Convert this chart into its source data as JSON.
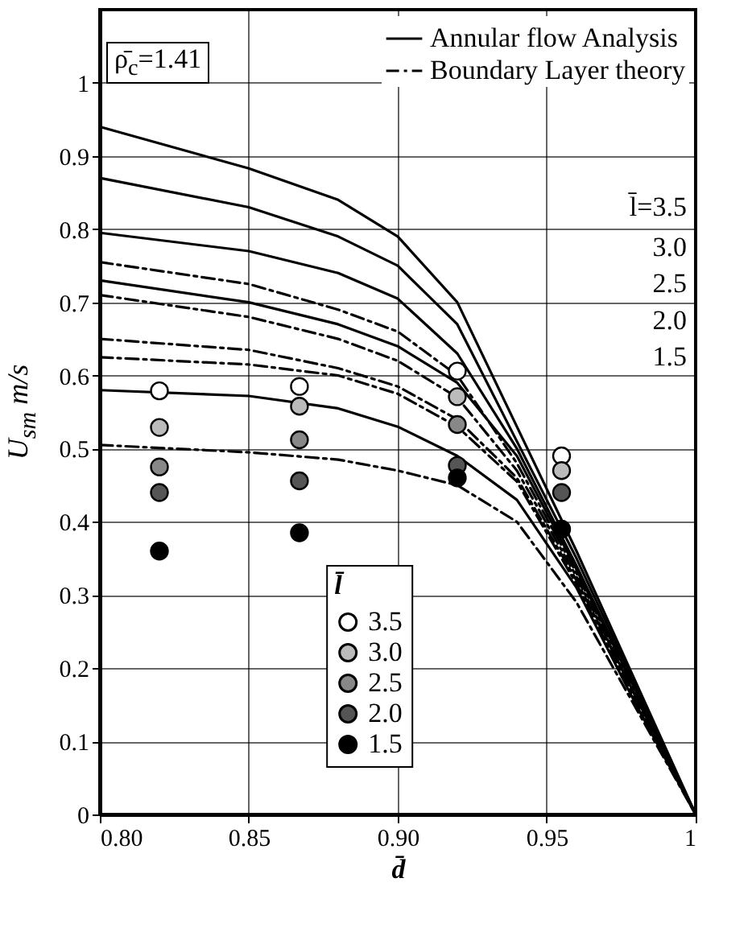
{
  "chart_data": {
    "type": "line",
    "xlabel": "d̄",
    "ylabel": "U$_{sm}$ m/s",
    "legend_title": "l̄",
    "annotations": [
      "ρ̄$_{c}$=1.41",
      "l̄=3.5",
      "3.0",
      "2.5",
      "2.0",
      "1.5"
    ],
    "xlim": [
      0.8,
      1.0
    ],
    "ylim": [
      0,
      1.1
    ],
    "xticks": [
      {
        "value": 0.8,
        "label": "0.80"
      },
      0.85,
      {
        "value": 0.9,
        "label": "0.90"
      },
      0.95,
      1
    ],
    "yticks": [
      0,
      0.1,
      0.2,
      0.3,
      0.4,
      0.5,
      0.6,
      0.7,
      0.8,
      0.9,
      1
    ],
    "grid": true,
    "legend": "top right",
    "x": [
      0.8,
      0.85,
      0.88,
      0.9,
      0.92,
      0.94,
      0.96,
      0.98,
      1.0
    ],
    "series": [
      {
        "name": "Annular flow Analysis",
        "color": "#000000",
        "line_style": "solid",
        "values": [
          0.94,
          0.883,
          0.84,
          0.79,
          0.7,
          0.53,
          0.36,
          0.18,
          0
        ]
      },
      {
        "color": "#000000",
        "line_style": "solid",
        "values": [
          0.87,
          0.83,
          0.79,
          0.75,
          0.67,
          0.51,
          0.35,
          0.175,
          0
        ]
      },
      {
        "color": "#000000",
        "line_style": "solid",
        "values": [
          0.795,
          0.77,
          0.74,
          0.705,
          0.63,
          0.5,
          0.34,
          0.17,
          0
        ]
      },
      {
        "name": "Boundary Layer theory",
        "color": "#000000",
        "line_style": "dashed",
        "values": [
          0.755,
          0.725,
          0.69,
          0.66,
          0.6,
          0.48,
          0.33,
          0.165,
          0
        ]
      },
      {
        "color": "#000000",
        "line_style": "solid",
        "values": [
          0.73,
          0.7,
          0.67,
          0.64,
          0.59,
          0.49,
          0.335,
          0.168,
          0
        ]
      },
      {
        "color": "#000000",
        "line_style": "dashed",
        "values": [
          0.71,
          0.68,
          0.65,
          0.62,
          0.57,
          0.47,
          0.325,
          0.16,
          0
        ]
      },
      {
        "color": "#000000",
        "line_style": "dashed",
        "values": [
          0.65,
          0.635,
          0.61,
          0.585,
          0.54,
          0.46,
          0.32,
          0.16,
          0
        ]
      },
      {
        "color": "#000000",
        "line_style": "dashed",
        "values": [
          0.625,
          0.615,
          0.6,
          0.575,
          0.53,
          0.455,
          0.315,
          0.155,
          0
        ]
      },
      {
        "color": "#000000",
        "line_style": "solid",
        "values": [
          0.58,
          0.572,
          0.555,
          0.53,
          0.49,
          0.43,
          0.31,
          0.15,
          0
        ]
      },
      {
        "color": "#000000",
        "line_style": "dashed",
        "values": [
          0.505,
          0.495,
          0.485,
          0.47,
          0.45,
          0.4,
          0.29,
          0.145,
          0
        ]
      },
      {
        "name": "3.5",
        "type": "scatter",
        "marker": "circle",
        "color": "#ffffff",
        "x": [
          0.82,
          0.867,
          0.92,
          0.955
        ],
        "values": [
          0.579,
          0.585,
          0.606,
          0.49
        ]
      },
      {
        "name": "3.0",
        "type": "scatter",
        "marker": "circle",
        "color": "#bbbbbb",
        "x": [
          0.82,
          0.867,
          0.92,
          0.955
        ],
        "values": [
          0.529,
          0.558,
          0.571,
          0.47
        ]
      },
      {
        "name": "2.5",
        "type": "scatter",
        "marker": "circle",
        "color": "#888888",
        "x": [
          0.82,
          0.867,
          0.92
        ],
        "values": [
          0.475,
          0.512,
          0.533
        ]
      },
      {
        "name": "2.0",
        "type": "scatter",
        "marker": "circle",
        "color": "#555555",
        "x": [
          0.82,
          0.867,
          0.92,
          0.955
        ],
        "values": [
          0.44,
          0.456,
          0.477,
          0.44
        ]
      },
      {
        "name": "1.5",
        "type": "scatter",
        "marker": "circle",
        "color": "#000000",
        "x": [
          0.82,
          0.867,
          0.92,
          0.955
        ],
        "values": [
          0.36,
          0.385,
          0.46,
          0.39
        ]
      }
    ]
  }
}
